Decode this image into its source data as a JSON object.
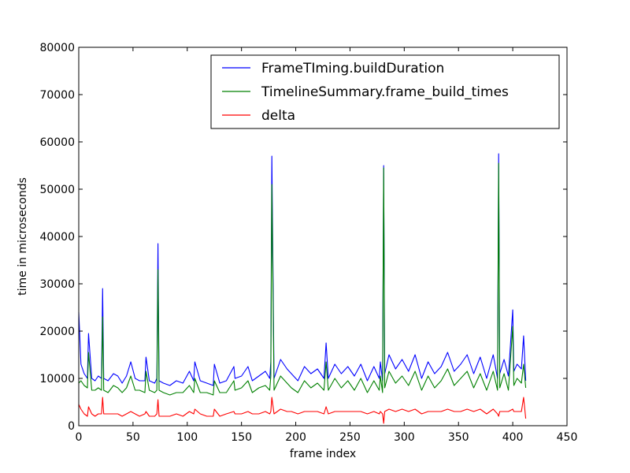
{
  "chart_data": {
    "type": "line",
    "title": "",
    "xlabel": "frame index",
    "ylabel": "time in microseconds",
    "xlim": [
      0,
      450
    ],
    "ylim": [
      0,
      80000
    ],
    "xticks": [
      0,
      50,
      100,
      150,
      200,
      250,
      300,
      350,
      400,
      450
    ],
    "yticks": [
      0,
      10000,
      20000,
      30000,
      40000,
      50000,
      60000,
      70000,
      80000
    ],
    "legend_position": "top-right",
    "grid": false,
    "series": [
      {
        "name": "FrameTIming.buildDuration",
        "color": "#0000ff",
        "x": [
          0,
          2,
          5,
          8,
          9,
          12,
          15,
          18,
          21,
          22,
          23,
          27,
          32,
          36,
          40,
          44,
          48,
          52,
          56,
          61,
          62,
          65,
          70,
          72,
          73,
          74,
          78,
          84,
          90,
          96,
          102,
          106,
          107,
          112,
          118,
          124,
          125,
          130,
          136,
          143,
          144,
          150,
          156,
          160,
          166,
          172,
          176,
          177,
          178,
          180,
          186,
          192,
          196,
          202,
          208,
          214,
          220,
          226,
          228,
          230,
          236,
          242,
          248,
          254,
          260,
          266,
          272,
          277,
          278,
          280,
          281,
          282,
          286,
          292,
          298,
          304,
          310,
          316,
          322,
          328,
          334,
          340,
          346,
          352,
          358,
          364,
          370,
          376,
          382,
          386,
          387,
          388,
          392,
          396,
          400,
          401,
          404,
          408,
          410,
          412
        ],
        "y": [
          24000,
          13000,
          11000,
          10000,
          19500,
          10000,
          9500,
          10500,
          10000,
          29000,
          10000,
          9500,
          11000,
          10500,
          9000,
          10500,
          13500,
          10000,
          9500,
          9500,
          14500,
          9500,
          9000,
          10000,
          38500,
          9500,
          9000,
          8500,
          9500,
          9000,
          11500,
          9500,
          13500,
          9500,
          9000,
          8500,
          13000,
          9000,
          9500,
          12500,
          10000,
          10500,
          12500,
          9500,
          10500,
          11500,
          10000,
          13500,
          57000,
          10000,
          14000,
          12000,
          11000,
          9500,
          12500,
          11000,
          12000,
          10000,
          17500,
          10000,
          13000,
          11000,
          12500,
          10500,
          13000,
          9500,
          12500,
          10000,
          13500,
          9500,
          55000,
          11000,
          15000,
          12000,
          14000,
          11500,
          15000,
          10000,
          13500,
          11000,
          12500,
          15500,
          11500,
          13000,
          15000,
          11000,
          14500,
          10000,
          15000,
          10000,
          57500,
          11000,
          14000,
          10500,
          24500,
          11500,
          13000,
          12000,
          19000,
          9500
        ]
      },
      {
        "name": "TimelineSummary.frame_build_times",
        "color": "#008000",
        "x": [
          0,
          2,
          5,
          8,
          9,
          12,
          15,
          18,
          21,
          22,
          23,
          27,
          32,
          36,
          40,
          44,
          48,
          52,
          56,
          61,
          62,
          65,
          70,
          72,
          73,
          74,
          78,
          84,
          90,
          96,
          102,
          106,
          107,
          112,
          118,
          124,
          125,
          130,
          136,
          143,
          144,
          150,
          156,
          160,
          166,
          172,
          176,
          177,
          178,
          180,
          186,
          192,
          196,
          202,
          208,
          214,
          220,
          226,
          228,
          230,
          236,
          242,
          248,
          254,
          260,
          266,
          272,
          277,
          278,
          280,
          281,
          282,
          286,
          292,
          298,
          304,
          310,
          316,
          322,
          328,
          334,
          340,
          346,
          352,
          358,
          364,
          370,
          376,
          382,
          386,
          387,
          388,
          392,
          396,
          400,
          401,
          404,
          408,
          410,
          412
        ],
        "y": [
          9000,
          9500,
          8500,
          8000,
          15500,
          7500,
          7500,
          8000,
          7500,
          23000,
          7500,
          7000,
          8500,
          8000,
          7000,
          8000,
          10500,
          7500,
          7500,
          7000,
          11500,
          7500,
          7000,
          7500,
          33000,
          7500,
          7000,
          6500,
          7000,
          7000,
          8500,
          7000,
          10000,
          7000,
          7000,
          6500,
          9500,
          7000,
          7000,
          9500,
          7500,
          8000,
          9500,
          7000,
          8000,
          8500,
          7500,
          10500,
          51000,
          7500,
          10500,
          9000,
          8000,
          7000,
          9500,
          8000,
          9000,
          7500,
          13500,
          7500,
          10000,
          8000,
          9500,
          7500,
          10000,
          7000,
          9500,
          7500,
          10500,
          7000,
          54500,
          8000,
          11500,
          9000,
          10500,
          8500,
          11500,
          7500,
          10500,
          8000,
          9500,
          12000,
          8500,
          10000,
          11500,
          8000,
          11000,
          7500,
          11500,
          7500,
          55500,
          8000,
          11000,
          7500,
          21000,
          8500,
          10000,
          9000,
          13000,
          8000
        ]
      },
      {
        "name": "delta",
        "color": "#ff0000",
        "x": [
          0,
          2,
          5,
          8,
          9,
          12,
          15,
          18,
          21,
          22,
          23,
          27,
          32,
          36,
          40,
          44,
          48,
          52,
          56,
          61,
          62,
          65,
          70,
          72,
          73,
          74,
          78,
          84,
          90,
          96,
          102,
          106,
          107,
          112,
          118,
          124,
          125,
          130,
          136,
          143,
          144,
          150,
          156,
          160,
          166,
          172,
          176,
          177,
          178,
          180,
          186,
          192,
          196,
          202,
          208,
          214,
          220,
          226,
          228,
          230,
          236,
          242,
          248,
          254,
          260,
          266,
          272,
          277,
          278,
          280,
          281,
          282,
          286,
          292,
          298,
          304,
          310,
          316,
          322,
          328,
          334,
          340,
          346,
          352,
          358,
          364,
          370,
          376,
          382,
          386,
          387,
          388,
          392,
          396,
          400,
          401,
          404,
          408,
          410,
          412
        ],
        "y": [
          4500,
          3500,
          2500,
          2000,
          4000,
          2500,
          2000,
          2500,
          2500,
          6000,
          2500,
          2500,
          2500,
          2500,
          2000,
          2500,
          3000,
          2500,
          2000,
          2500,
          3000,
          2000,
          2000,
          2500,
          5500,
          2000,
          2000,
          2000,
          2500,
          2000,
          3000,
          2500,
          3500,
          2500,
          2000,
          2000,
          3500,
          2000,
          2500,
          3000,
          2500,
          2500,
          3000,
          2500,
          2500,
          3000,
          2500,
          3000,
          6000,
          2500,
          3500,
          3000,
          3000,
          2500,
          3000,
          3000,
          3000,
          2500,
          4000,
          2500,
          3000,
          3000,
          3000,
          3000,
          3000,
          2500,
          3000,
          2500,
          3000,
          2500,
          500,
          3000,
          3500,
          3000,
          3500,
          3000,
          3500,
          2500,
          3000,
          3000,
          3000,
          3500,
          3000,
          3000,
          3500,
          3000,
          3500,
          2500,
          3500,
          2500,
          2000,
          3000,
          3000,
          3000,
          3500,
          3000,
          3000,
          3000,
          6000,
          1500
        ]
      }
    ]
  }
}
